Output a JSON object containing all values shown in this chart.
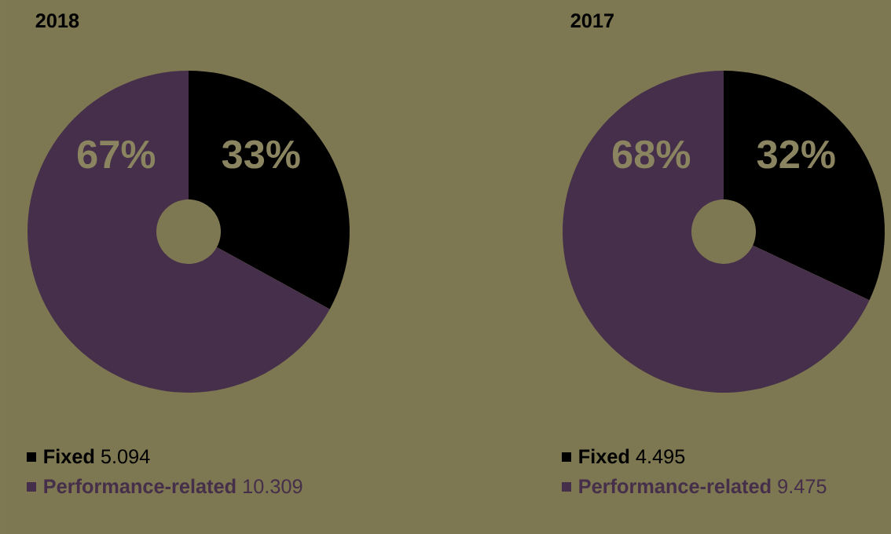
{
  "chart_data": [
    {
      "type": "donut",
      "title": "2018",
      "categories": [
        "**Fixed**    5.094",
        "**Performance-related**    10.309"
      ],
      "values": [
        33,
        67
      ],
      "colors": [
        "#000000",
        "#462f4a"
      ],
      "value_labels": [
        "33%",
        "67%"
      ],
      "legend": "bottom"
    },
    {
      "type": "donut",
      "title": "2017",
      "categories": [
        "**Fixed**    4.495",
        "**Performance-related**    9.475"
      ],
      "values": [
        32,
        68
      ],
      "colors": [
        "#000000",
        "#462f4a"
      ],
      "value_labels": [
        "32%",
        "68%"
      ],
      "legend": "bottom"
    }
  ]
}
